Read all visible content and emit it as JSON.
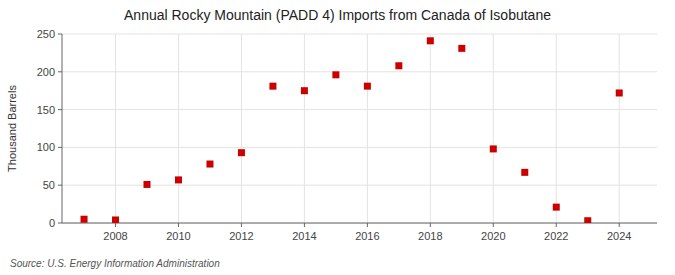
{
  "chart_data": {
    "type": "scatter",
    "title": "Annual Rocky Mountain (PADD 4) Imports from Canada of Isobutane",
    "y_label": "Thousand Barrels",
    "annotations": [
      "Source: U.S. Energy Information Administration"
    ],
    "x": [
      2007,
      2008,
      2009,
      2010,
      2011,
      2012,
      2013,
      2014,
      2015,
      2016,
      2017,
      2018,
      2019,
      2020,
      2021,
      2022,
      2023,
      2024
    ],
    "values": [
      5,
      4,
      51,
      57,
      78,
      93,
      181,
      175,
      196,
      181,
      208,
      241,
      231,
      98,
      67,
      21,
      3,
      172
    ],
    "color": "#cc0000",
    "marker": "square",
    "xlim": [
      2006.3,
      2025.2
    ],
    "xticks": [
      2008,
      2010,
      2012,
      2014,
      2016,
      2018,
      2020,
      2022,
      2024
    ],
    "ylim": [
      0,
      250
    ],
    "yticks": [
      0,
      50,
      100,
      150,
      200,
      250
    ],
    "grid": true
  }
}
